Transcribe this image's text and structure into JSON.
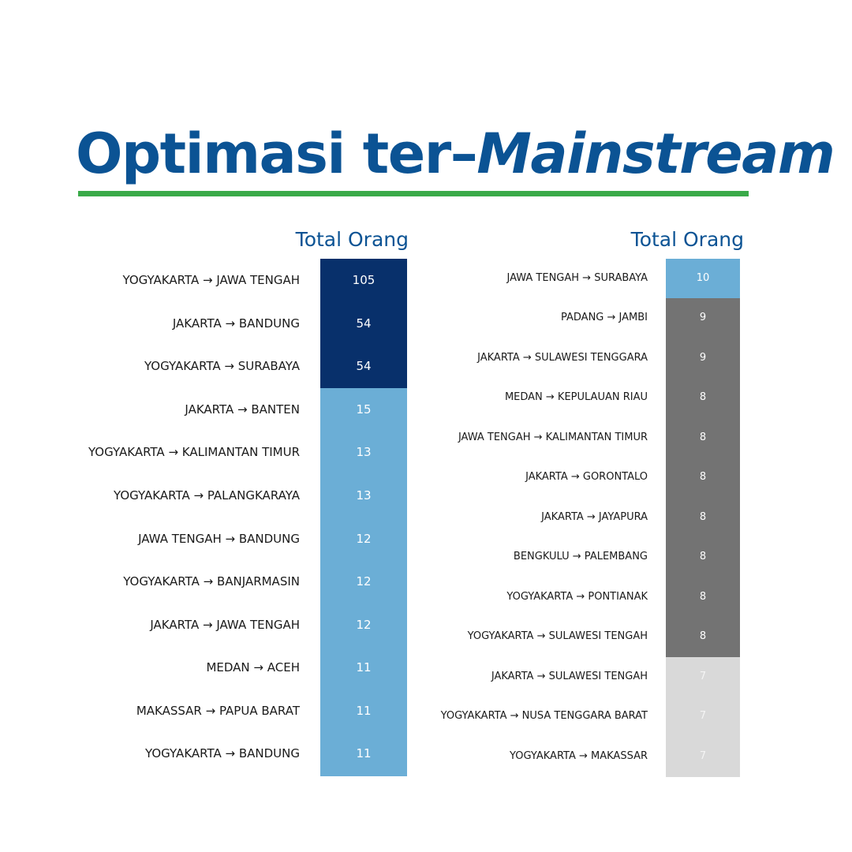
{
  "title": {
    "part1": "Optimasi ter–",
    "part2": "Mainstream"
  },
  "chart_data": [
    {
      "type": "heatmap",
      "column_header": "Total Orang",
      "rows": [
        {
          "label": "YOGYAKARTA → JAWA TENGAH",
          "value": 105
        },
        {
          "label": "JAKARTA → BANDUNG",
          "value": 54
        },
        {
          "label": "YOGYAKARTA → SURABAYA",
          "value": 54
        },
        {
          "label": "JAKARTA → BANTEN",
          "value": 15
        },
        {
          "label": "YOGYAKARTA → KALIMANTAN TIMUR",
          "value": 13
        },
        {
          "label": "YOGYAKARTA → PALANGKARAYA",
          "value": 13
        },
        {
          "label": "JAWA TENGAH → BANDUNG",
          "value": 12
        },
        {
          "label": "YOGYAKARTA → BANJARMASIN",
          "value": 12
        },
        {
          "label": "JAKARTA → JAWA TENGAH",
          "value": 12
        },
        {
          "label": "MEDAN → ACEH",
          "value": 11
        },
        {
          "label": "MAKASSAR → PAPUA BARAT",
          "value": 11
        },
        {
          "label": "YOGYAKARTA → BANDUNG",
          "value": 11
        }
      ],
      "color_bins": [
        {
          "min": 50,
          "color": "#08306b",
          "text_color": "#ffffff"
        },
        {
          "min": 0,
          "color": "#6baed6",
          "text_color": "#ffffff"
        }
      ]
    },
    {
      "type": "heatmap",
      "column_header": "Total Orang",
      "rows": [
        {
          "label": "JAWA TENGAH → SURABAYA",
          "value": 10
        },
        {
          "label": "PADANG → JAMBI",
          "value": 9
        },
        {
          "label": "JAKARTA → SULAWESI TENGGARA",
          "value": 9
        },
        {
          "label": "MEDAN → KEPULAUAN RIAU",
          "value": 8
        },
        {
          "label": "JAWA TENGAH → KALIMANTAN TIMUR",
          "value": 8
        },
        {
          "label": "JAKARTA → GORONTALO",
          "value": 8
        },
        {
          "label": "JAKARTA → JAYAPURA",
          "value": 8
        },
        {
          "label": "BENGKULU → PALEMBANG",
          "value": 8
        },
        {
          "label": "YOGYAKARTA → PONTIANAK",
          "value": 8
        },
        {
          "label": "YOGYAKARTA → SULAWESI TENGAH",
          "value": 8
        },
        {
          "label": "JAKARTA → SULAWESI TENGAH",
          "value": 7
        },
        {
          "label": "YOGYAKARTA → NUSA TENGGARA BARAT",
          "value": 7
        },
        {
          "label": "YOGYAKARTA → MAKASSAR",
          "value": 7
        }
      ],
      "color_bins": [
        {
          "min": 10,
          "color": "#6baed6",
          "text_color": "#ffffff"
        },
        {
          "min": 8,
          "color": "#737373",
          "text_color": "#ffffff"
        },
        {
          "min": 0,
          "color": "#d9d9d9",
          "text_color": "#f4f4f4"
        }
      ]
    }
  ]
}
